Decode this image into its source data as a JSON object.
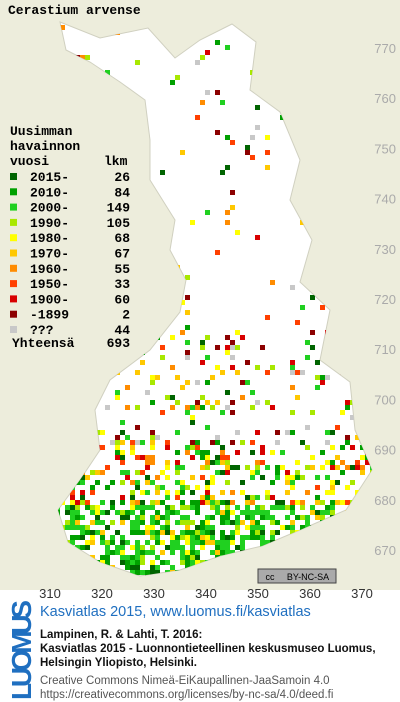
{
  "title": "Cerastium arvense",
  "legend": {
    "header": [
      "Uusimman",
      "havainnon",
      "vuosi"
    ],
    "count_header": "lkm",
    "rows": [
      {
        "label": "2015-",
        "count": 26,
        "color": "#006400"
      },
      {
        "label": "2010-",
        "count": 84,
        "color": "#00a000"
      },
      {
        "label": "2000-",
        "count": 149,
        "color": "#20d020"
      },
      {
        "label": "1990-",
        "count": 105,
        "color": "#a8e800"
      },
      {
        "label": "1980-",
        "count": 68,
        "color": "#ffff00"
      },
      {
        "label": "1970-",
        "count": 67,
        "color": "#ffc800"
      },
      {
        "label": "1960-",
        "count": 55,
        "color": "#ff8c00"
      },
      {
        "label": "1950-",
        "count": 33,
        "color": "#ff4000"
      },
      {
        "label": "1900-",
        "count": 60,
        "color": "#d80000"
      },
      {
        "label": "-1899",
        "count": 2,
        "color": "#8c0000"
      },
      {
        "label": "???",
        "count": 44,
        "color": "#c8c8c8"
      }
    ],
    "total_label": "Yhteensä",
    "total": 693
  },
  "map": {
    "x_labels": [
      310,
      320,
      330,
      340,
      350,
      360,
      370
    ],
    "y_labels": [
      770,
      760,
      750,
      740,
      730,
      720,
      710,
      700,
      690,
      680,
      670
    ],
    "badge": [
      "cc",
      "BY-NC-SA"
    ]
  },
  "footer": {
    "logo": "LUOMUS",
    "link": "Kasviatlas 2015, www.luomus.fi/kasviatlas",
    "citation": [
      "Lampinen, R. & Lahti, T. 2016:",
      "Kasviatlas 2015 - Luonnontieteellinen keskusmuseo Luomus,",
      "Helsingin Yliopisto, Helsinki."
    ],
    "license": [
      "Creative Commons Nimeä-EiKaupallinen-JaaSamoin 4.0",
      "https://creativecommons.org/licenses/by-nc-sa/4.0/deed.fi"
    ]
  }
}
